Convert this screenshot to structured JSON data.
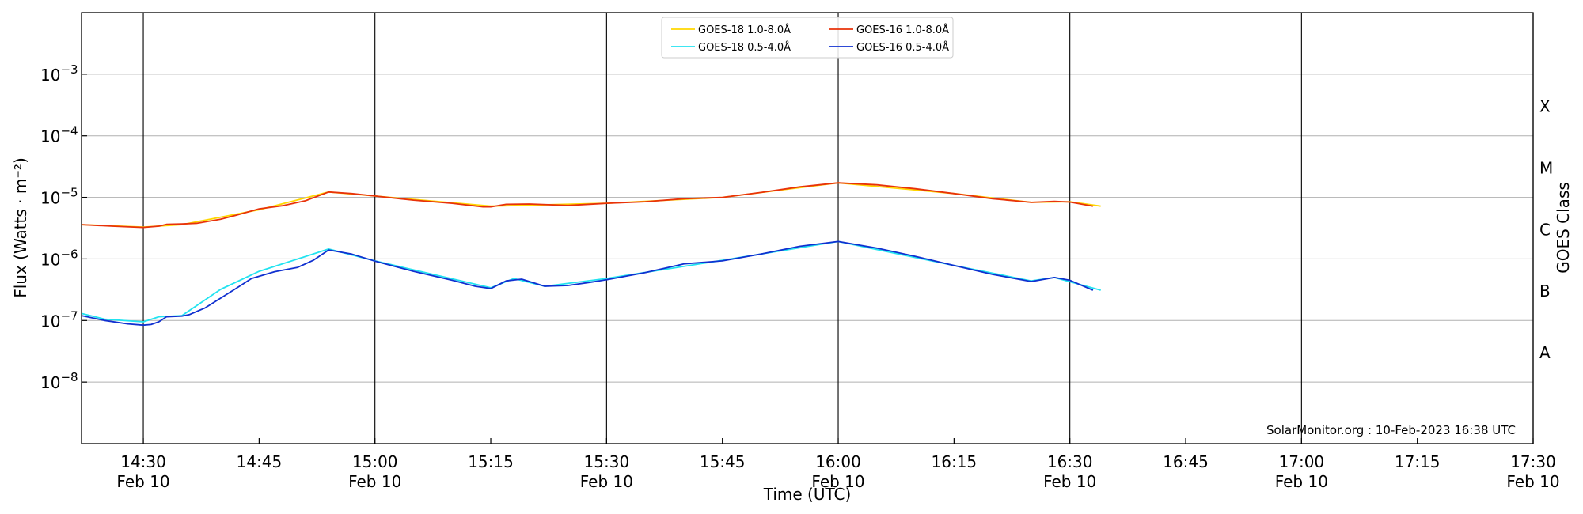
{
  "chart_data": {
    "type": "line",
    "xlabel": "Time (UTC)",
    "ylabel": "Flux (Watts · m⁻²)",
    "y2label": "GOES Class",
    "y_scale": "log",
    "ylim": [
      1e-09,
      0.01
    ],
    "xlim": [
      "2023-02-10T14:22",
      "2023-02-10T17:30"
    ],
    "grid": "horizontal at decades, vertical lines at every 30 minutes",
    "legend_position": "top-center",
    "credit": "SolarMonitor.org : 10-Feb-2023 16:38 UTC",
    "x_ticks": [
      {
        "time": "2023-02-10T14:30",
        "line1": "14:30",
        "line2": "Feb 10"
      },
      {
        "time": "2023-02-10T14:45",
        "line1": "14:45",
        "line2": ""
      },
      {
        "time": "2023-02-10T15:00",
        "line1": "15:00",
        "line2": "Feb 10"
      },
      {
        "time": "2023-02-10T15:15",
        "line1": "15:15",
        "line2": ""
      },
      {
        "time": "2023-02-10T15:30",
        "line1": "15:30",
        "line2": "Feb 10"
      },
      {
        "time": "2023-02-10T15:45",
        "line1": "15:45",
        "line2": ""
      },
      {
        "time": "2023-02-10T16:00",
        "line1": "16:00",
        "line2": "Feb 10"
      },
      {
        "time": "2023-02-10T16:15",
        "line1": "16:15",
        "line2": ""
      },
      {
        "time": "2023-02-10T16:30",
        "line1": "16:30",
        "line2": "Feb 10"
      },
      {
        "time": "2023-02-10T16:45",
        "line1": "16:45",
        "line2": ""
      },
      {
        "time": "2023-02-10T17:00",
        "line1": "17:00",
        "line2": "Feb 10"
      },
      {
        "time": "2023-02-10T17:15",
        "line1": "17:15",
        "line2": ""
      },
      {
        "time": "2023-02-10T17:30",
        "line1": "17:30",
        "line2": "Feb 10"
      }
    ],
    "y_ticks": [
      {
        "value": 1e-08,
        "exp": "−8"
      },
      {
        "value": 1e-07,
        "exp": "−7"
      },
      {
        "value": 1e-06,
        "exp": "−6"
      },
      {
        "value": 1e-05,
        "exp": "−5"
      },
      {
        "value": 0.0001,
        "exp": "−4"
      },
      {
        "value": 0.001,
        "exp": "−3"
      }
    ],
    "goes_classes": [
      {
        "label": "A",
        "level": 3e-08
      },
      {
        "label": "B",
        "level": 3e-07
      },
      {
        "label": "C",
        "level": 3e-06
      },
      {
        "label": "M",
        "level": 3e-05
      },
      {
        "label": "X",
        "level": 0.0003
      }
    ],
    "series": [
      {
        "name": "GOES-18 1.0-8.0Å",
        "color": "#ffd700",
        "points": [
          [
            "2023-02-10T14:22",
            3.6e-06
          ],
          [
            "2023-02-10T14:30",
            3.3e-06
          ],
          [
            "2023-02-10T14:35",
            3.6e-06
          ],
          [
            "2023-02-10T14:45",
            6.3e-06
          ],
          [
            "2023-02-10T14:54",
            1.22e-05
          ],
          [
            "2023-02-10T15:00",
            1.05e-05
          ],
          [
            "2023-02-10T15:15",
            7.2e-06
          ],
          [
            "2023-02-10T15:30",
            8e-06
          ],
          [
            "2023-02-10T15:45",
            1e-05
          ],
          [
            "2023-02-10T16:00",
            1.72e-05
          ],
          [
            "2023-02-10T16:15",
            1.15e-05
          ],
          [
            "2023-02-10T16:25",
            8.3e-06
          ],
          [
            "2023-02-10T16:30",
            8.5e-06
          ],
          [
            "2023-02-10T16:34",
            7.2e-06
          ]
        ]
      },
      {
        "name": "GOES-18 0.5-4.0Å",
        "color": "#22e3f0",
        "points": [
          [
            "2023-02-10T14:22",
            1.3e-07
          ],
          [
            "2023-02-10T14:25",
            1.05e-07
          ],
          [
            "2023-02-10T14:30",
            9.5e-08
          ],
          [
            "2023-02-10T14:32",
            1.15e-07
          ],
          [
            "2023-02-10T14:35",
            1.2e-07
          ],
          [
            "2023-02-10T14:40",
            3.2e-07
          ],
          [
            "2023-02-10T14:45",
            6.3e-07
          ],
          [
            "2023-02-10T14:54",
            1.45e-06
          ],
          [
            "2023-02-10T15:00",
            9.3e-07
          ],
          [
            "2023-02-10T15:15",
            3.4e-07
          ],
          [
            "2023-02-10T15:18",
            4.8e-07
          ],
          [
            "2023-02-10T15:22",
            3.6e-07
          ],
          [
            "2023-02-10T15:30",
            4.8e-07
          ],
          [
            "2023-02-10T15:45",
            9.5e-07
          ],
          [
            "2023-02-10T16:00",
            1.92e-06
          ],
          [
            "2023-02-10T16:15",
            7.8e-07
          ],
          [
            "2023-02-10T16:25",
            4.4e-07
          ],
          [
            "2023-02-10T16:28",
            5e-07
          ],
          [
            "2023-02-10T16:34",
            3.1e-07
          ]
        ]
      },
      {
        "name": "GOES-16 1.0-8.0Å",
        "color": "#e8320a",
        "points": [
          [
            "2023-02-10T14:22",
            3.6e-06
          ],
          [
            "2023-02-10T14:26",
            3.4e-06
          ],
          [
            "2023-02-10T14:30",
            3.25e-06
          ],
          [
            "2023-02-10T14:32",
            3.4e-06
          ],
          [
            "2023-02-10T14:33",
            3.65e-06
          ],
          [
            "2023-02-10T14:35",
            3.7e-06
          ],
          [
            "2023-02-10T14:37",
            3.8e-06
          ],
          [
            "2023-02-10T14:40",
            4.4e-06
          ],
          [
            "2023-02-10T14:42",
            5.1e-06
          ],
          [
            "2023-02-10T14:45",
            6.5e-06
          ],
          [
            "2023-02-10T14:48",
            7.3e-06
          ],
          [
            "2023-02-10T14:51",
            8.8e-06
          ],
          [
            "2023-02-10T14:54",
            1.22e-05
          ],
          [
            "2023-02-10T14:57",
            1.15e-05
          ],
          [
            "2023-02-10T15:00",
            1.05e-05
          ],
          [
            "2023-02-10T15:05",
            9e-06
          ],
          [
            "2023-02-10T15:10",
            8e-06
          ],
          [
            "2023-02-10T15:14",
            7e-06
          ],
          [
            "2023-02-10T15:15",
            7e-06
          ],
          [
            "2023-02-10T15:17",
            7.7e-06
          ],
          [
            "2023-02-10T15:20",
            7.8e-06
          ],
          [
            "2023-02-10T15:25",
            7.4e-06
          ],
          [
            "2023-02-10T15:30",
            8e-06
          ],
          [
            "2023-02-10T15:35",
            8.5e-06
          ],
          [
            "2023-02-10T15:40",
            9.5e-06
          ],
          [
            "2023-02-10T15:45",
            1e-05
          ],
          [
            "2023-02-10T15:50",
            1.2e-05
          ],
          [
            "2023-02-10T15:55",
            1.48e-05
          ],
          [
            "2023-02-10T16:00",
            1.72e-05
          ],
          [
            "2023-02-10T16:05",
            1.6e-05
          ],
          [
            "2023-02-10T16:10",
            1.38e-05
          ],
          [
            "2023-02-10T16:15",
            1.15e-05
          ],
          [
            "2023-02-10T16:20",
            9.5e-06
          ],
          [
            "2023-02-10T16:25",
            8.3e-06
          ],
          [
            "2023-02-10T16:28",
            8.6e-06
          ],
          [
            "2023-02-10T16:30",
            8.4e-06
          ],
          [
            "2023-02-10T16:33",
            7.2e-06
          ]
        ]
      },
      {
        "name": "GOES-16 0.5-4.0Å",
        "color": "#1030d0",
        "points": [
          [
            "2023-02-10T14:22",
            1.2e-07
          ],
          [
            "2023-02-10T14:25",
            1e-07
          ],
          [
            "2023-02-10T14:28",
            8.8e-08
          ],
          [
            "2023-02-10T14:30",
            8.4e-08
          ],
          [
            "2023-02-10T14:31",
            8.6e-08
          ],
          [
            "2023-02-10T14:32",
            9.5e-08
          ],
          [
            "2023-02-10T14:33",
            1.15e-07
          ],
          [
            "2023-02-10T14:35",
            1.18e-07
          ],
          [
            "2023-02-10T14:36",
            1.25e-07
          ],
          [
            "2023-02-10T14:38",
            1.6e-07
          ],
          [
            "2023-02-10T14:40",
            2.3e-07
          ],
          [
            "2023-02-10T14:42",
            3.3e-07
          ],
          [
            "2023-02-10T14:44",
            4.8e-07
          ],
          [
            "2023-02-10T14:47",
            6.2e-07
          ],
          [
            "2023-02-10T14:50",
            7.3e-07
          ],
          [
            "2023-02-10T14:52",
            9.5e-07
          ],
          [
            "2023-02-10T14:54",
            1.4e-06
          ],
          [
            "2023-02-10T14:57",
            1.2e-06
          ],
          [
            "2023-02-10T15:00",
            9.2e-07
          ],
          [
            "2023-02-10T15:05",
            6.3e-07
          ],
          [
            "2023-02-10T15:10",
            4.5e-07
          ],
          [
            "2023-02-10T15:13",
            3.6e-07
          ],
          [
            "2023-02-10T15:15",
            3.3e-07
          ],
          [
            "2023-02-10T15:17",
            4.4e-07
          ],
          [
            "2023-02-10T15:19",
            4.7e-07
          ],
          [
            "2023-02-10T15:22",
            3.6e-07
          ],
          [
            "2023-02-10T15:25",
            3.7e-07
          ],
          [
            "2023-02-10T15:28",
            4.2e-07
          ],
          [
            "2023-02-10T15:30",
            4.6e-07
          ],
          [
            "2023-02-10T15:35",
            6e-07
          ],
          [
            "2023-02-10T15:40",
            8.3e-07
          ],
          [
            "2023-02-10T15:45",
            9.3e-07
          ],
          [
            "2023-02-10T15:50",
            1.2e-06
          ],
          [
            "2023-02-10T15:55",
            1.6e-06
          ],
          [
            "2023-02-10T16:00",
            1.92e-06
          ],
          [
            "2023-02-10T16:05",
            1.5e-06
          ],
          [
            "2023-02-10T16:10",
            1.1e-06
          ],
          [
            "2023-02-10T16:15",
            7.8e-07
          ],
          [
            "2023-02-10T16:20",
            5.6e-07
          ],
          [
            "2023-02-10T16:25",
            4.3e-07
          ],
          [
            "2023-02-10T16:28",
            5e-07
          ],
          [
            "2023-02-10T16:30",
            4.5e-07
          ],
          [
            "2023-02-10T16:33",
            3.1e-07
          ]
        ]
      }
    ]
  }
}
